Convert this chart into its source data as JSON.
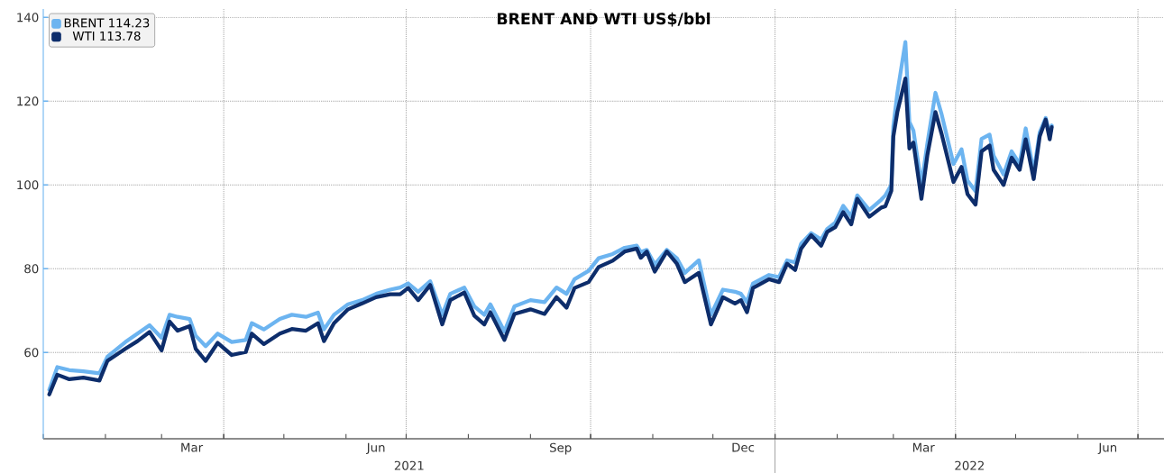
{
  "chart_data": {
    "type": "line",
    "title": "**BRENT AND WTI US$/bbl**",
    "x": [
      "2021-01-04",
      "2021-01-08",
      "2021-01-14",
      "2021-01-21",
      "2021-01-29",
      "2021-02-02",
      "2021-02-11",
      "2021-02-17",
      "2021-02-23",
      "2021-03-01",
      "2021-03-05",
      "2021-03-09",
      "2021-03-15",
      "2021-03-18",
      "2021-03-23",
      "2021-03-29",
      "2021-04-05",
      "2021-04-12",
      "2021-04-15",
      "2021-04-21",
      "2021-04-29",
      "2021-05-05",
      "2021-05-12",
      "2021-05-18",
      "2021-05-21",
      "2021-05-26",
      "2021-06-02",
      "2021-06-09",
      "2021-06-16",
      "2021-06-23",
      "2021-06-28",
      "2021-07-02",
      "2021-07-07",
      "2021-07-13",
      "2021-07-19",
      "2021-07-23",
      "2021-07-30",
      "2021-08-04",
      "2021-08-09",
      "2021-08-12",
      "2021-08-19",
      "2021-08-24",
      "2021-09-01",
      "2021-09-08",
      "2021-09-14",
      "2021-09-19",
      "2021-09-23",
      "2021-09-30",
      "2021-10-05",
      "2021-10-12",
      "2021-10-18",
      "2021-10-24",
      "2021-10-26",
      "2021-10-29",
      "2021-11-02",
      "2021-11-08",
      "2021-11-13",
      "2021-11-17",
      "2021-11-24",
      "2021-11-30",
      "2021-12-06",
      "2021-12-12",
      "2021-12-15",
      "2021-12-18",
      "2021-12-21",
      "2021-12-29",
      "2022-01-03",
      "2022-01-07",
      "2022-01-11",
      "2022-01-14",
      "2022-01-19",
      "2022-01-24",
      "2022-01-27",
      "2022-01-31",
      "2022-02-04",
      "2022-02-08",
      "2022-02-11",
      "2022-02-17",
      "2022-02-23",
      "2022-02-25",
      "2022-02-28",
      "2022-03-01",
      "2022-03-03",
      "2022-03-07",
      "2022-03-09",
      "2022-03-11",
      "2022-03-15",
      "2022-03-18",
      "2022-03-22",
      "2022-03-25",
      "2022-03-31",
      "2022-04-04",
      "2022-04-07",
      "2022-04-11",
      "2022-04-14",
      "2022-04-18",
      "2022-04-20",
      "2022-04-25",
      "2022-04-29",
      "2022-05-03",
      "2022-05-06",
      "2022-05-10",
      "2022-05-13",
      "2022-05-16",
      "2022-05-18",
      "2022-05-19"
    ],
    "series": [
      {
        "name": "BRENT  114.23",
        "color": "#6cb4f0",
        "values": [
          51.1,
          56.5,
          55.8,
          55.5,
          55.0,
          59.0,
          62.5,
          64.5,
          66.5,
          63.5,
          69.0,
          68.5,
          68.0,
          64.0,
          61.5,
          64.5,
          62.5,
          63.0,
          67.0,
          65.5,
          68.0,
          69.0,
          68.5,
          69.5,
          65.5,
          69.0,
          71.5,
          72.5,
          74.0,
          75.0,
          75.5,
          76.5,
          74.5,
          77.0,
          69.0,
          74.0,
          75.5,
          71.0,
          69.0,
          71.5,
          65.0,
          71.0,
          72.5,
          72.0,
          75.5,
          74.0,
          77.5,
          79.5,
          82.5,
          83.5,
          85.0,
          85.5,
          84.0,
          84.5,
          81.0,
          84.5,
          82.5,
          79.0,
          82.0,
          69.0,
          75.0,
          74.5,
          74.0,
          72.0,
          76.5,
          78.5,
          78.0,
          82.0,
          81.5,
          86.0,
          88.5,
          87.0,
          89.5,
          91.0,
          95.0,
          92.5,
          97.5,
          94.0,
          96.5,
          97.5,
          100.0,
          114.0,
          122.0,
          134.1,
          115.0,
          113.0,
          100.0,
          110.0,
          122.0,
          117.0,
          105.0,
          108.5,
          101.0,
          98.5,
          111.0,
          112.0,
          107.0,
          102.5,
          108.0,
          105.0,
          113.5,
          103.0,
          112.5,
          116.0,
          112.0,
          114.2
        ]
      },
      {
        "name": "WTI  113.78",
        "color": "#0d2d6b",
        "values": [
          50.0,
          54.7,
          53.6,
          54.0,
          53.3,
          58.0,
          60.9,
          62.7,
          64.9,
          60.5,
          67.4,
          65.2,
          66.3,
          60.9,
          58.0,
          62.3,
          59.4,
          60.1,
          64.5,
          62.0,
          64.5,
          65.6,
          65.2,
          67.0,
          62.7,
          67.0,
          70.3,
          71.7,
          73.2,
          73.9,
          73.9,
          75.4,
          72.5,
          76.1,
          66.7,
          72.5,
          74.3,
          68.8,
          66.7,
          69.6,
          63.0,
          69.2,
          70.3,
          69.2,
          73.2,
          70.7,
          75.4,
          76.8,
          80.4,
          81.9,
          84.1,
          84.8,
          82.6,
          84.1,
          79.3,
          84.1,
          81.2,
          76.8,
          79.0,
          66.7,
          73.2,
          71.7,
          72.5,
          69.6,
          75.4,
          77.5,
          76.8,
          81.2,
          79.7,
          84.8,
          88.0,
          85.5,
          88.8,
          89.9,
          93.5,
          90.6,
          96.7,
          92.4,
          94.6,
          94.9,
          98.6,
          111.6,
          117.4,
          125.4,
          108.7,
          110.1,
          96.7,
          107.2,
          117.4,
          112.3,
          100.7,
          104.3,
          97.8,
          95.3,
          108.0,
          109.4,
          103.6,
          100.0,
          106.5,
          103.6,
          110.9,
          101.4,
          111.6,
          115.6,
          110.9,
          113.8
        ]
      }
    ],
    "xlim": [
      "2021-01-01",
      "2022-07-14"
    ],
    "xticks": [
      {
        "value": "2021-01-01",
        "label": null
      },
      {
        "value": "2021-02-01",
        "label": null
      },
      {
        "value": "2021-03-01",
        "label": null
      },
      {
        "value": "2021-03-16",
        "label": "Mar"
      },
      {
        "value": "2021-04-01",
        "label": null
      },
      {
        "value": "2021-05-01",
        "label": null
      },
      {
        "value": "2021-06-01",
        "label": null
      },
      {
        "value": "2021-06-16",
        "label": "Jun"
      },
      {
        "value": "2021-07-01",
        "label": null
      },
      {
        "value": "2021-08-01",
        "label": null
      },
      {
        "value": "2021-09-01",
        "label": null
      },
      {
        "value": "2021-09-16",
        "label": "Sep"
      },
      {
        "value": "2021-10-01",
        "label": null
      },
      {
        "value": "2021-11-01",
        "label": null
      },
      {
        "value": "2021-12-01",
        "label": null
      },
      {
        "value": "2021-12-16",
        "label": "Dec"
      },
      {
        "value": "2022-01-01",
        "label": null
      },
      {
        "value": "2022-02-01",
        "label": null
      },
      {
        "value": "2022-03-01",
        "label": null
      },
      {
        "value": "2022-03-16",
        "label": "Mar"
      },
      {
        "value": "2022-04-01",
        "label": null
      },
      {
        "value": "2022-05-01",
        "label": null
      },
      {
        "value": "2022-06-01",
        "label": null
      },
      {
        "value": "2022-06-16",
        "label": "Jun"
      },
      {
        "value": "2022-07-01",
        "label": null
      }
    ],
    "ylim": [
      39.4,
      142
    ],
    "yticks": [
      60,
      80,
      100,
      120,
      140
    ],
    "annotations": [
      "2021",
      "2022"
    ],
    "grid": true,
    "legend": "top left",
    "marker": "none",
    "line_style": "solid"
  }
}
